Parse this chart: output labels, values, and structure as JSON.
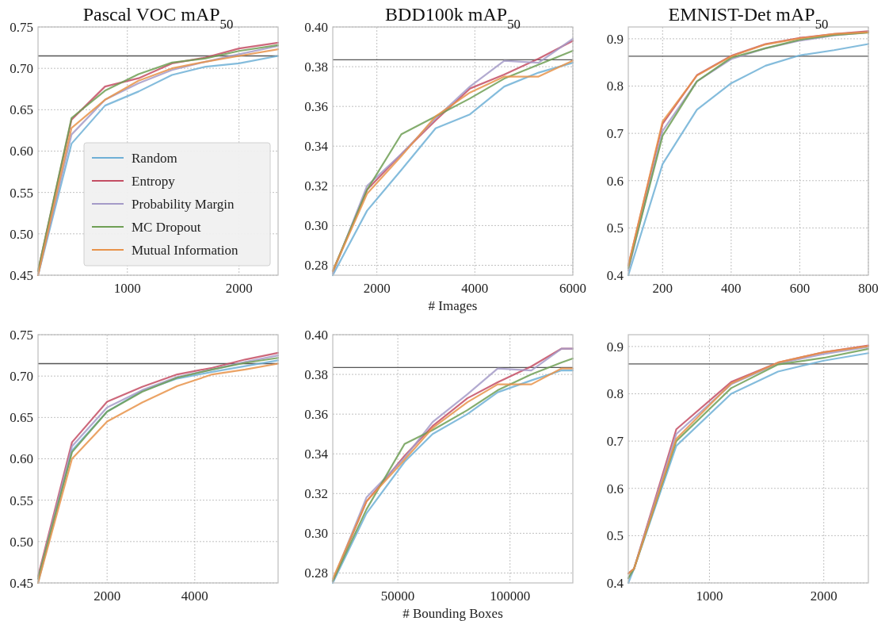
{
  "chart_data": [
    {
      "type": "line",
      "title": "Pascal VOC mAP$_{50}$",
      "x": [
        200,
        500,
        800,
        1100,
        1400,
        1700,
        2000,
        2350
      ],
      "xlim": [
        200,
        2350
      ],
      "xticks": [
        1000,
        2000
      ],
      "ylim": [
        0.45,
        0.75
      ],
      "yticks": [
        0.45,
        {
          "value": 0.5,
          "label": "0.50"
        },
        0.55,
        {
          "value": 0.6,
          "label": "0.60"
        },
        0.65,
        {
          "value": 0.7,
          "label": "0.70"
        },
        0.75
      ],
      "grid": true,
      "legend": "bottom right",
      "ref_lines": [
        {
          "axis": "y",
          "value": 0.715,
          "color": "#555555"
        }
      ],
      "series": [
        {
          "name": "Random",
          "color": "#6fb0d6",
          "values": [
            0.45,
            0.609,
            0.655,
            0.672,
            0.692,
            0.702,
            0.706,
            0.715
          ]
        },
        {
          "name": "Entropy",
          "color": "#c44e64",
          "values": [
            0.455,
            0.638,
            0.678,
            0.688,
            0.706,
            0.713,
            0.724,
            0.731
          ]
        },
        {
          "name": "Probability Margin",
          "color": "#a59bc8",
          "values": [
            0.45,
            0.62,
            0.662,
            0.682,
            0.698,
            0.708,
            0.717,
            0.727
          ]
        },
        {
          "name": "MC Dropout",
          "color": "#6f9f55",
          "values": [
            0.455,
            0.64,
            0.673,
            0.693,
            0.707,
            0.712,
            0.721,
            0.728
          ]
        },
        {
          "name": "Mutual Information",
          "color": "#e8934a",
          "values": [
            0.45,
            0.628,
            0.662,
            0.685,
            0.7,
            0.708,
            0.715,
            0.723
          ]
        }
      ]
    },
    {
      "type": "line",
      "title": "BDD100k mAP$_{50}$",
      "xlabel": "# Images",
      "x": [
        1100,
        1800,
        2500,
        3200,
        3900,
        4600,
        5300,
        6000
      ],
      "xlim": [
        1100,
        6000
      ],
      "xticks": [
        2000,
        4000,
        6000
      ],
      "ylim": [
        0.275,
        0.4
      ],
      "yticks": [
        0.28,
        {
          "value": 0.3,
          "label": "0.30"
        },
        0.32,
        0.34,
        0.36,
        0.38,
        {
          "value": 0.4,
          "label": "0.40"
        }
      ],
      "grid": true,
      "ref_lines": [
        {
          "axis": "y",
          "value": 0.3835,
          "color": "#555555"
        }
      ],
      "series": [
        {
          "color": "#6fb0d6",
          "values": [
            0.275,
            0.3075,
            0.328,
            0.349,
            0.356,
            0.37,
            0.377,
            0.382
          ]
        },
        {
          "color": "#c44e64",
          "values": [
            0.277,
            0.318,
            0.336,
            0.353,
            0.369,
            0.376,
            0.384,
            0.393
          ]
        },
        {
          "color": "#a59bc8",
          "values": [
            0.276,
            0.32,
            0.336,
            0.354,
            0.37,
            0.383,
            0.382,
            0.394
          ]
        },
        {
          "color": "#6f9f55",
          "values": [
            0.277,
            0.318,
            0.346,
            0.355,
            0.364,
            0.374,
            0.381,
            0.388
          ]
        },
        {
          "color": "#e8934a",
          "values": [
            0.277,
            0.316,
            0.335,
            0.355,
            0.367,
            0.375,
            0.375,
            0.383
          ]
        }
      ]
    },
    {
      "type": "line",
      "title": "EMNIST-Det mAP$_{50}$",
      "x": [
        100,
        200,
        300,
        400,
        500,
        600,
        700,
        800
      ],
      "xlim": [
        100,
        800
      ],
      "xticks": [
        200,
        400,
        600,
        800
      ],
      "ylim": [
        0.4,
        0.925
      ],
      "yticks": [
        0.4,
        0.5,
        0.6,
        0.7,
        0.8,
        0.9
      ],
      "grid": true,
      "ref_lines": [
        {
          "axis": "y",
          "value": 0.863,
          "color": "#555555"
        }
      ],
      "series": [
        {
          "color": "#6fb0d6",
          "values": [
            0.4,
            0.635,
            0.75,
            0.806,
            0.843,
            0.865,
            0.876,
            0.889
          ]
        },
        {
          "color": "#c44e64",
          "values": [
            0.42,
            0.72,
            0.823,
            0.864,
            0.889,
            0.902,
            0.91,
            0.916
          ]
        },
        {
          "color": "#a59bc8",
          "values": [
            0.41,
            0.705,
            0.81,
            0.857,
            0.88,
            0.896,
            0.907,
            0.914
          ]
        },
        {
          "color": "#6f9f55",
          "values": [
            0.415,
            0.695,
            0.81,
            0.86,
            0.88,
            0.898,
            0.908,
            0.913
          ]
        },
        {
          "color": "#e8934a",
          "values": [
            0.42,
            0.725,
            0.822,
            0.863,
            0.888,
            0.901,
            0.91,
            0.914
          ]
        }
      ]
    },
    {
      "type": "line",
      "x": [
        425,
        1200,
        2000,
        2800,
        3600,
        4400,
        5150,
        5900
      ],
      "xlim": [
        425,
        5900
      ],
      "xticks": [
        2000,
        4000
      ],
      "ylim": [
        0.45,
        0.75
      ],
      "yticks": [
        0.45,
        {
          "value": 0.5,
          "label": "0.50"
        },
        0.55,
        {
          "value": 0.6,
          "label": "0.60"
        },
        0.65,
        {
          "value": 0.7,
          "label": "0.70"
        },
        0.75
      ],
      "grid": true,
      "ref_lines": [
        {
          "axis": "y",
          "value": 0.715,
          "color": "#555555"
        }
      ],
      "series": [
        {
          "color": "#6fb0d6",
          "values": [
            0.45,
            0.61,
            0.657,
            0.682,
            0.697,
            0.705,
            0.712,
            0.719
          ]
        },
        {
          "color": "#c44e64",
          "values": [
            0.458,
            0.62,
            0.669,
            0.687,
            0.702,
            0.71,
            0.72,
            0.728
          ]
        },
        {
          "color": "#a59bc8",
          "values": [
            0.455,
            0.615,
            0.662,
            0.683,
            0.699,
            0.708,
            0.717,
            0.725
          ]
        },
        {
          "color": "#6f9f55",
          "values": [
            0.455,
            0.608,
            0.657,
            0.681,
            0.698,
            0.708,
            0.716,
            0.722
          ]
        },
        {
          "color": "#e8934a",
          "values": [
            0.45,
            0.6,
            0.645,
            0.668,
            0.688,
            0.702,
            0.708,
            0.715
          ]
        }
      ]
    },
    {
      "type": "line",
      "xlabel": "# Bounding Boxes",
      "x": [
        21000,
        36000,
        53000,
        65500,
        81000,
        94500,
        109500,
        123000,
        128000
      ],
      "xlim": [
        21000,
        128000
      ],
      "xticks": [
        50000,
        100000
      ],
      "ylim": [
        0.275,
        0.4
      ],
      "yticks": [
        0.28,
        {
          "value": 0.3,
          "label": "0.30"
        },
        0.32,
        0.34,
        0.36,
        0.38,
        {
          "value": 0.4,
          "label": "0.40"
        }
      ],
      "grid": true,
      "ref_lines": [
        {
          "axis": "y",
          "value": 0.3835,
          "color": "#555555"
        }
      ],
      "series": [
        {
          "color": "#6fb0d6",
          "values": [
            0.275,
            0.31,
            0.336,
            0.35,
            0.36,
            0.371,
            0.377,
            0.382,
            0.382
          ]
        },
        {
          "color": "#c44e64",
          "values": [
            0.276,
            0.316,
            0.339,
            0.354,
            0.368,
            0.376,
            0.384,
            0.393,
            0.393
          ]
        },
        {
          "color": "#a59bc8",
          "values": [
            0.276,
            0.318,
            0.338,
            0.356,
            0.37,
            0.383,
            0.382,
            0.393,
            0.393
          ]
        },
        {
          "color": "#6f9f55",
          "values": [
            0.276,
            0.312,
            0.345,
            0.352,
            0.362,
            0.372,
            0.38,
            0.386,
            0.388
          ]
        },
        {
          "color": "#e8934a",
          "values": [
            0.277,
            0.316,
            0.337,
            0.353,
            0.366,
            0.375,
            0.375,
            0.383,
            0.383
          ]
        }
      ]
    },
    {
      "type": "line",
      "x": [
        290,
        340,
        710,
        1190,
        1600,
        2000,
        2390
      ],
      "xlim": [
        290,
        2390
      ],
      "xticks": [
        1000,
        2000
      ],
      "ylim": [
        0.4,
        0.925
      ],
      "yticks": [
        0.4,
        0.5,
        0.6,
        0.7,
        0.8,
        0.9
      ],
      "grid": true,
      "ref_lines": [
        {
          "axis": "y",
          "value": 0.863,
          "color": "#555555"
        }
      ],
      "series": [
        {
          "color": "#6fb0d6",
          "values": [
            0.4,
            0.43,
            0.69,
            0.8,
            0.847,
            0.87,
            0.886
          ]
        },
        {
          "color": "#c44e64",
          "values": [
            0.42,
            0.43,
            0.725,
            0.825,
            0.866,
            0.888,
            0.902
          ]
        },
        {
          "color": "#a59bc8",
          "values": [
            0.41,
            0.43,
            0.715,
            0.82,
            0.864,
            0.884,
            0.899
          ]
        },
        {
          "color": "#6f9f55",
          "values": [
            0.41,
            0.43,
            0.7,
            0.812,
            0.862,
            0.876,
            0.895
          ]
        },
        {
          "color": "#e8934a",
          "values": [
            0.42,
            0.43,
            0.705,
            0.822,
            0.866,
            0.888,
            0.901
          ]
        }
      ]
    }
  ]
}
